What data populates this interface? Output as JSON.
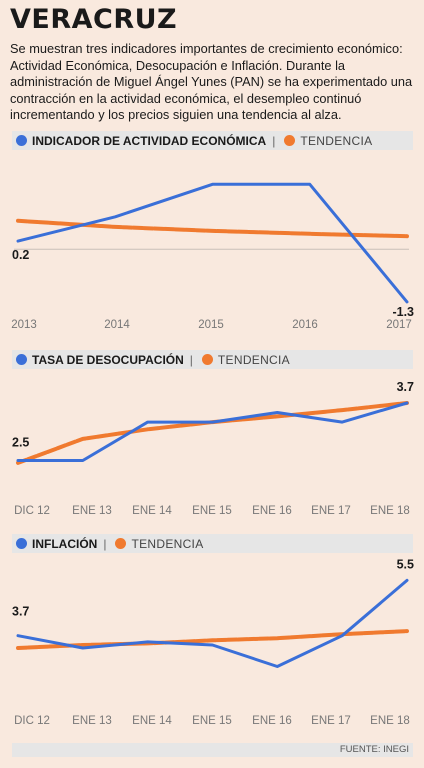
{
  "header": {
    "title": "VERACRUZ",
    "intro": "Se muestran tres indicadores importantes de crecimiento económico: Actividad Económica, Desocupación e Inflación. Durante la administración de Miguel Ángel Yunes (PAN) se ha experimentado una contracción en la actividad económica, el desempleo continuó incrementando y los precios siguien una tendencia al alza."
  },
  "colors": {
    "series": "#3a6fd8",
    "trend": "#f07a2f",
    "band": "#e6e6e6",
    "background": "#f9e9de"
  },
  "source": "FUENTE: INEGI",
  "chart_data": [
    {
      "type": "line",
      "legend": [
        "INDICADOR DE ACTIVIDAD ECONÓMICA",
        "TENDENCIA"
      ],
      "separator": "|",
      "x": [
        2013,
        2014,
        2015,
        2016,
        2017
      ],
      "x_tick_labels": [
        "2013",
        "2014",
        "2015",
        "2016",
        "2017"
      ],
      "series": [
        {
          "name": "INDICADOR DE ACTIVIDAD ECONÓMICA",
          "values": [
            0.2,
            0.8,
            1.6,
            1.6,
            -1.3
          ]
        },
        {
          "name": "TENDENCIA",
          "values": [
            0.7,
            0.55,
            0.45,
            0.38,
            0.32
          ]
        }
      ],
      "zero_line": true,
      "ylim": [
        -1.5,
        2.2
      ],
      "annotations": [
        "0.2",
        "-1.3"
      ]
    },
    {
      "type": "line",
      "legend": [
        "TASA DE DESOCUPACIÓN",
        "TENDENCIA"
      ],
      "separator": "|",
      "x_tick_labels": [
        "DIC 12",
        "ENE 13",
        "ENE 14",
        "ENE 15",
        "ENE 16",
        "ENE 17",
        "ENE 18"
      ],
      "series": [
        {
          "name": "TASA DE DESOCUPACIÓN",
          "values": [
            2.5,
            2.5,
            3.3,
            3.3,
            3.5,
            3.3,
            3.7
          ]
        },
        {
          "name": "TENDENCIA",
          "values": [
            2.45,
            2.95,
            3.15,
            3.3,
            3.42,
            3.55,
            3.7
          ]
        }
      ],
      "ylim": [
        1.8,
        4.2
      ],
      "annotations": [
        "2.5",
        "3.7"
      ]
    },
    {
      "type": "line",
      "legend": [
        "INFLACIÓN",
        "TENDENCIA"
      ],
      "separator": "|",
      "x_tick_labels": [
        "DIC 12",
        "ENE 13",
        "ENE 14",
        "ENE 15",
        "ENE 16",
        "ENE 17",
        "ENE 18"
      ],
      "series": [
        {
          "name": "INFLACIÓN",
          "values": [
            3.7,
            3.3,
            3.5,
            3.4,
            2.7,
            3.7,
            5.5
          ]
        },
        {
          "name": "TENDENCIA",
          "values": [
            3.3,
            3.4,
            3.45,
            3.55,
            3.62,
            3.75,
            3.85
          ]
        }
      ],
      "ylim": [
        2.0,
        6.0
      ],
      "annotations": [
        "3.7",
        "5.5"
      ]
    }
  ]
}
